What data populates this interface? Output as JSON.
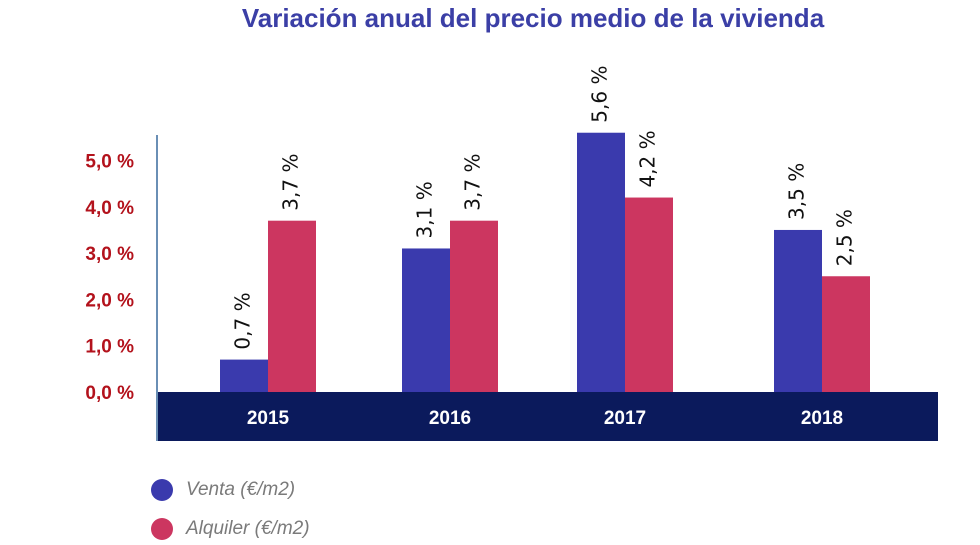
{
  "chart_data": {
    "type": "bar",
    "title": "Variación anual del precio medio de la vivienda",
    "categories": [
      "2015",
      "2016",
      "2017",
      "2018"
    ],
    "series": [
      {
        "name": "Venta (€/m2)",
        "values": [
          0.7,
          3.1,
          5.6,
          3.5
        ],
        "labels": [
          "0,7 %",
          "3,1 %",
          "5,6 %",
          "3,5 %"
        ],
        "color": "#3a3aad"
      },
      {
        "name": "Alquiler (€/m2)",
        "values": [
          3.7,
          3.7,
          4.2,
          2.5
        ],
        "labels": [
          "3,7 %",
          "3,7 %",
          "4,2 %",
          "2,5 %"
        ],
        "color": "#cc3660"
      }
    ],
    "yticks": [
      0,
      1,
      2,
      3,
      4,
      5
    ],
    "ytick_labels": [
      "0,0 %",
      "1,0 %",
      "2,0 %",
      "3,0 %",
      "4,0 %",
      "5,0 %"
    ],
    "ylim": [
      0,
      5.6
    ],
    "grid": false,
    "legend_position": "bottom-left",
    "colors": {
      "category_band": "#0b1a5c",
      "ytick_text": "#b3121c",
      "title_text": "#3b3fa6"
    }
  }
}
